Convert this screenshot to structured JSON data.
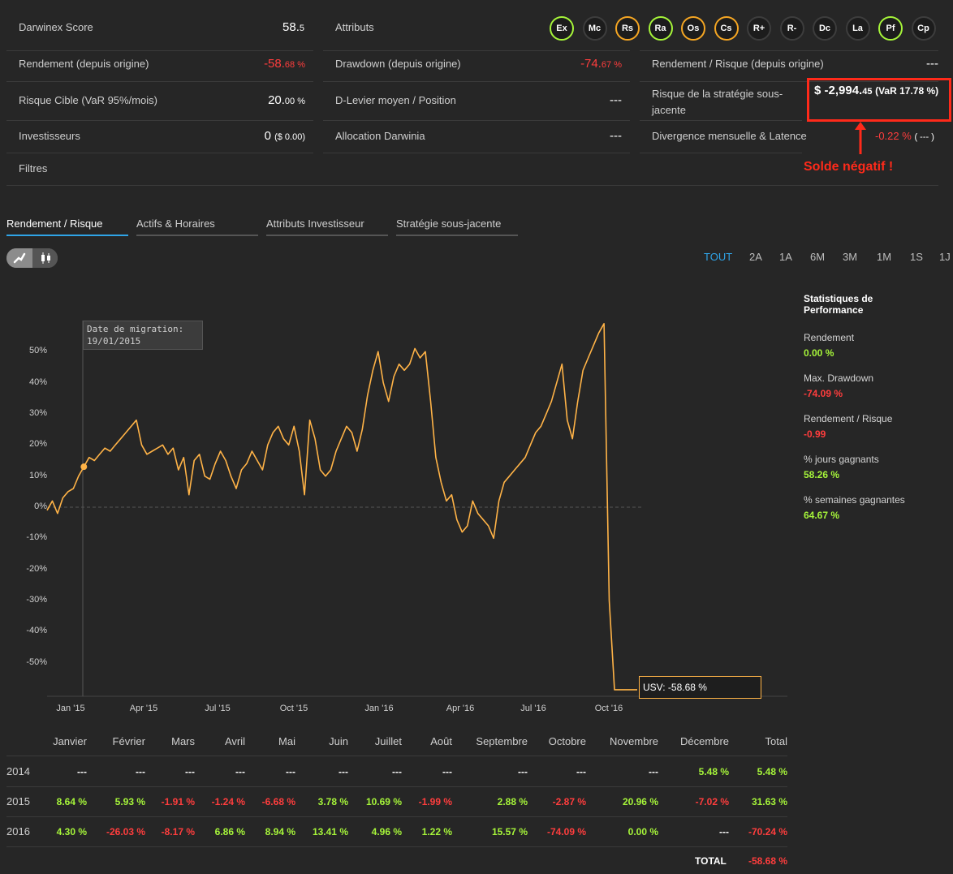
{
  "stats": {
    "score": {
      "label": "Darwinex Score",
      "value": "58.",
      "value_small": "5"
    },
    "attributes_label": "Attributs",
    "attributes": [
      {
        "label": "Ex",
        "ring": "#a6f53a"
      },
      {
        "label": "Mc",
        "ring": "#3d3d3d"
      },
      {
        "label": "Rs",
        "ring": "#f5a623"
      },
      {
        "label": "Ra",
        "ring": "#a6f53a"
      },
      {
        "label": "Os",
        "ring": "#f5a623"
      },
      {
        "label": "Cs",
        "ring": "#f5a623"
      },
      {
        "label": "R+",
        "ring": "#3d3d3d"
      },
      {
        "label": "R-",
        "ring": "#3d3d3d"
      },
      {
        "label": "Dc",
        "ring": "#3d3d3d"
      },
      {
        "label": "La",
        "ring": "#3d3d3d"
      },
      {
        "label": "Pf",
        "ring": "#a6f53a"
      },
      {
        "label": "Cp",
        "ring": "#3d3d3d"
      }
    ],
    "return": {
      "label": "Rendement (depuis origine)",
      "value": "-58.",
      "value_small": "68 %"
    },
    "drawdown": {
      "label": "Drawdown (depuis origine)",
      "value": "-74.",
      "value_small": "67 %"
    },
    "return_risk": {
      "label": "Rendement / Risque (depuis origine)",
      "value": "---"
    },
    "target_risk": {
      "label": "Risque Cible (VaR 95%/mois)",
      "value": "20.",
      "value_small": "00 %"
    },
    "leverage": {
      "label": "D-Levier moyen / Position",
      "value": "---"
    },
    "strategy_risk": {
      "label": "Risque de la stratégie sous-jacente",
      "value": "$ -2,994.",
      "value_small": "45",
      "var": "(VaR 17.78 %)"
    },
    "investors": {
      "label": "Investisseurs",
      "value": "0",
      "value_small": "($ 0.00)"
    },
    "allocation": {
      "label": "Allocation Darwinia",
      "value": "---"
    },
    "divergence": {
      "label": "Divergence mensuelle & Latence",
      "value": "-0.22 %",
      "value2": "( --- )"
    },
    "filters": {
      "label": "Filtres"
    },
    "annotation": "Solde négatif !"
  },
  "tabs": [
    {
      "label": "Rendement / Risque",
      "active": true
    },
    {
      "label": "Actifs & Horaires",
      "active": false
    },
    {
      "label": "Attributs Investisseur",
      "active": false
    },
    {
      "label": "Stratégie sous-jacente",
      "active": false
    }
  ],
  "periods": [
    "TOUT",
    "2A",
    "1A",
    "6M",
    "3M",
    "1M",
    "1S",
    "1J"
  ],
  "chart_data": {
    "type": "line",
    "ylim": [
      -60,
      60
    ],
    "yticks": [
      "50%",
      "40%",
      "30%",
      "20%",
      "10%",
      "0%",
      "-10%",
      "-20%",
      "-30%",
      "-40%",
      "-50%"
    ],
    "xticks": [
      "Jan '15",
      "Apr '15",
      "Jul '15",
      "Oct '15",
      "Jan '16",
      "Apr '16",
      "Jul '16",
      "Oct '16"
    ],
    "migration_label": "Date de migration:",
    "migration_date": "19/01/2015",
    "last_value_label": "USV: -58.68 %",
    "color": "#ffb347",
    "series": [
      -1,
      2,
      -2,
      3,
      5,
      6,
      10,
      13,
      16,
      15,
      17,
      19,
      18,
      20,
      22,
      24,
      26,
      28,
      20,
      17,
      18,
      19,
      20,
      17,
      19,
      12,
      16,
      4,
      15,
      17,
      10,
      9,
      14,
      18,
      15,
      10,
      6,
      12,
      14,
      18,
      15,
      12,
      20,
      24,
      26,
      22,
      20,
      26,
      18,
      4,
      28,
      22,
      12,
      10,
      12,
      18,
      22,
      26,
      24,
      18,
      25,
      36,
      44,
      50,
      40,
      34,
      42,
      46,
      44,
      46,
      51,
      48,
      50,
      34,
      16,
      8,
      2,
      4,
      -4,
      -8,
      -6,
      2,
      -2,
      -4,
      -6,
      -10,
      2,
      8,
      10,
      12,
      14,
      16,
      20,
      24,
      26,
      30,
      34,
      40,
      46,
      28,
      22,
      34,
      44,
      48,
      52,
      56,
      59,
      -30,
      -58.68
    ]
  },
  "perf_stats": {
    "title": "Statistiques de Performance",
    "items": [
      {
        "label": "Rendement",
        "value": "0.00 %",
        "tone": "pos"
      },
      {
        "label": "Max. Drawdown",
        "value": "-74.09 %",
        "tone": "neg"
      },
      {
        "label": "Rendement / Risque",
        "value": "-0.99",
        "tone": "neg"
      },
      {
        "label": "% jours gagnants",
        "value": "58.26 %",
        "tone": "pos"
      },
      {
        "label": "% semaines gagnantes",
        "value": "64.67 %",
        "tone": "pos"
      }
    ]
  },
  "monthly": {
    "headers": [
      "Janvier",
      "Février",
      "Mars",
      "Avril",
      "Mai",
      "Juin",
      "Juillet",
      "Août",
      "Septembre",
      "Octobre",
      "Novembre",
      "Décembre",
      "Total"
    ],
    "rows": [
      {
        "year": "2014",
        "values": [
          "---",
          "---",
          "---",
          "---",
          "---",
          "---",
          "---",
          "---",
          "---",
          "---",
          "---",
          "5.48 %",
          "5.48 %"
        ]
      },
      {
        "year": "2015",
        "values": [
          "8.64 %",
          "5.93 %",
          "-1.91 %",
          "-1.24 %",
          "-6.68 %",
          "3.78 %",
          "10.69 %",
          "-1.99 %",
          "2.88 %",
          "-2.87 %",
          "20.96 %",
          "-7.02 %",
          "31.63 %"
        ]
      },
      {
        "year": "2016",
        "values": [
          "4.30 %",
          "-26.03 %",
          "-8.17 %",
          "6.86 %",
          "8.94 %",
          "13.41 %",
          "4.96 %",
          "1.22 %",
          "15.57 %",
          "-74.09 %",
          "0.00 %",
          "---",
          "-70.24 %"
        ]
      }
    ],
    "total_label": "TOTAL",
    "total_value": "-58.68 %"
  }
}
